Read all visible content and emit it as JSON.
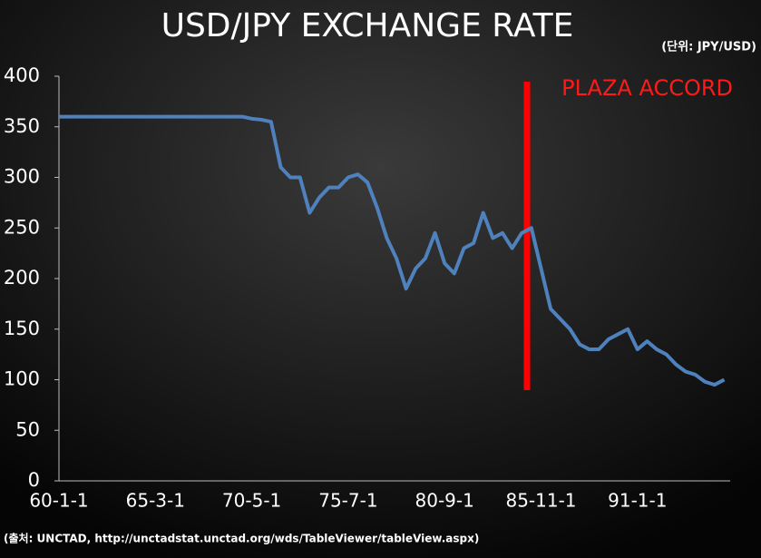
{
  "chart_data": {
    "type": "line",
    "title": "USD/JPY EXCHANGE RATE",
    "unit_label": "(단위: JPY/USD)",
    "source": "(출처: UNCTAD, http://unctadstat.unctad.org/wds/TableViewer/tableView.aspx)",
    "annotation": "PLAZA ACCORD",
    "categories": [
      "60-1-1",
      null,
      null,
      null,
      null,
      null,
      null,
      null,
      null,
      null,
      "65-3-1",
      null,
      null,
      null,
      null,
      null,
      null,
      null,
      null,
      null,
      "70-5-1",
      null,
      null,
      null,
      null,
      null,
      null,
      null,
      null,
      null,
      "75-7-1",
      null,
      null,
      null,
      null,
      null,
      null,
      null,
      null,
      null,
      "80-9-1",
      null,
      null,
      null,
      null,
      null,
      null,
      null,
      null,
      null,
      "85-11-1",
      null,
      null,
      null,
      null,
      null,
      null,
      null,
      null,
      null,
      "91-1-1",
      null,
      null,
      null,
      null,
      null,
      null,
      null,
      null,
      null
    ],
    "series": [
      {
        "color": "#4f81bd",
        "values": [
          360,
          360,
          360,
          360,
          360,
          360,
          360,
          360,
          360,
          360,
          360,
          360,
          360,
          360,
          360,
          360,
          360,
          360,
          360,
          360,
          358,
          357,
          355,
          310,
          300,
          300,
          265,
          280,
          290,
          290,
          300,
          303,
          295,
          270,
          240,
          220,
          190,
          210,
          220,
          245,
          215,
          205,
          230,
          235,
          265,
          240,
          245,
          230,
          245,
          250,
          210,
          170,
          160,
          150,
          135,
          130,
          130,
          140,
          145,
          150,
          130,
          138,
          130,
          125,
          115,
          108,
          105,
          98,
          95,
          100
        ]
      }
    ],
    "ylim": [
      0,
      400
    ],
    "yticks": [
      0,
      50,
      100,
      150,
      200,
      250,
      300,
      350,
      400
    ]
  }
}
